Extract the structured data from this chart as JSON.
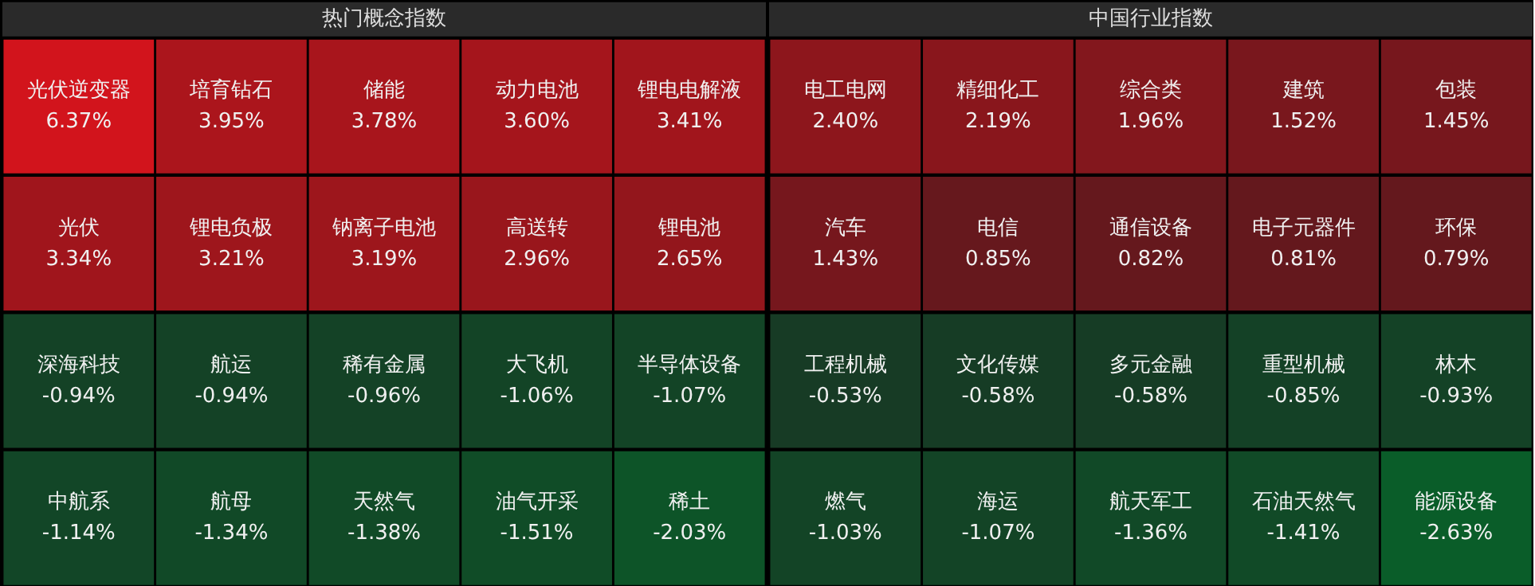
{
  "chart_data": [
    {
      "type": "other",
      "title": "热门概念指数",
      "categories": [
        "光伏逆变器",
        "培育钻石",
        "储能",
        "动力电池",
        "锂电电解液",
        "光伏",
        "锂电负极",
        "钠离子电池",
        "高送转",
        "锂电池",
        "深海科技",
        "航运",
        "稀有金属",
        "大飞机",
        "半导体设备",
        "中航系",
        "航母",
        "天然气",
        "油气开采",
        "稀土"
      ],
      "values": [
        6.37,
        3.95,
        3.78,
        3.6,
        3.41,
        3.34,
        3.21,
        3.19,
        2.96,
        2.65,
        -0.94,
        -0.94,
        -0.96,
        -1.06,
        -1.07,
        -1.14,
        -1.34,
        -1.38,
        -1.51,
        -2.03
      ],
      "value_labels": [
        "6.37%",
        "3.95%",
        "3.78%",
        "3.60%",
        "3.41%",
        "3.34%",
        "3.21%",
        "3.19%",
        "2.96%",
        "2.65%",
        "-0.94%",
        "-0.94%",
        "-0.96%",
        "-1.06%",
        "-1.07%",
        "-1.14%",
        "-1.34%",
        "-1.38%",
        "-1.51%",
        "-2.03%"
      ]
    },
    {
      "type": "other",
      "title": "中国行业指数",
      "categories": [
        "电工电网",
        "精细化工",
        "综合类",
        "建筑",
        "包装",
        "汽车",
        "电信",
        "通信设备",
        "电子元器件",
        "环保",
        "工程机械",
        "文化传媒",
        "多元金融",
        "重型机械",
        "林木",
        "燃气",
        "海运",
        "航天军工",
        "石油天然气",
        "能源设备"
      ],
      "values": [
        2.4,
        2.19,
        1.96,
        1.52,
        1.45,
        1.43,
        0.85,
        0.82,
        0.81,
        0.79,
        -0.53,
        -0.58,
        -0.58,
        -0.85,
        -0.93,
        -1.03,
        -1.07,
        -1.36,
        -1.41,
        -2.63
      ],
      "value_labels": [
        "2.40%",
        "2.19%",
        "1.96%",
        "1.52%",
        "1.45%",
        "1.43%",
        "0.85%",
        "0.82%",
        "0.81%",
        "0.79%",
        "-0.53%",
        "-0.58%",
        "-0.58%",
        "-0.85%",
        "-0.93%",
        "-1.03%",
        "-1.07%",
        "-1.36%",
        "-1.41%",
        "-2.63%"
      ]
    }
  ]
}
